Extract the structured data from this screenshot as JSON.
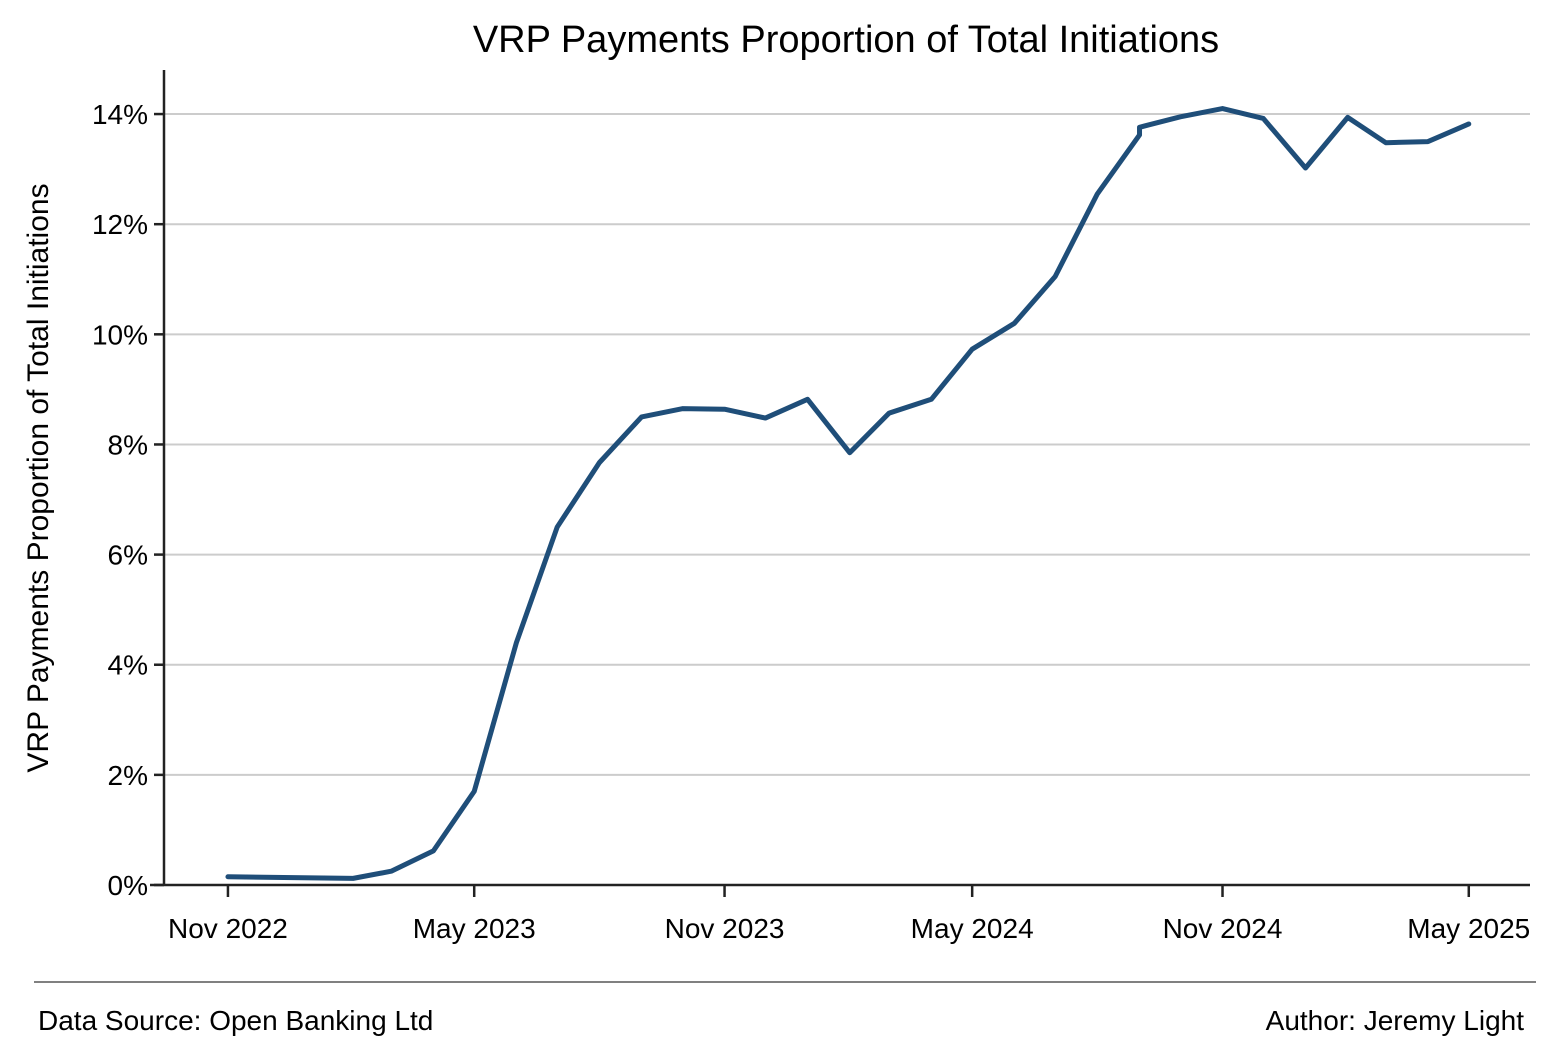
{
  "chart_data": {
    "type": "line",
    "title": "VRP Payments Proportion of Total Initiations",
    "xlabel": "",
    "ylabel": "VRP Payments Proportion of Total Initiations",
    "ylim": [
      0,
      14.8
    ],
    "y_ticks": [
      {
        "value": 0,
        "label": "0%"
      },
      {
        "value": 2,
        "label": "2%"
      },
      {
        "value": 4,
        "label": "4%"
      },
      {
        "value": 6,
        "label": "6%"
      },
      {
        "value": 8,
        "label": "8%"
      },
      {
        "value": 10,
        "label": "10%"
      },
      {
        "value": 12,
        "label": "12%"
      },
      {
        "value": 14,
        "label": "14%"
      }
    ],
    "x_ticks": [
      {
        "value": "2022-11-01",
        "label": "Nov 2022"
      },
      {
        "value": "2023-05-01",
        "label": "May 2023"
      },
      {
        "value": "2023-11-01",
        "label": "Nov 2023"
      },
      {
        "value": "2024-05-01",
        "label": "May 2024"
      },
      {
        "value": "2024-11-01",
        "label": "Nov 2024"
      },
      {
        "value": "2025-05-01",
        "label": "May 2025"
      }
    ],
    "xlim": [
      "2022-09-15",
      "2025-06-15"
    ],
    "grid": "horizontal",
    "line_color": "#1f4e79",
    "grid_color": "#cccccc",
    "series": [
      {
        "points": [
          {
            "x": "2022-11-01",
            "y": 0.15
          },
          {
            "x": "2023-02-01",
            "y": 0.12
          },
          {
            "x": "2023-03-01",
            "y": 0.25
          },
          {
            "x": "2023-04-01",
            "y": 0.62
          },
          {
            "x": "2023-05-01",
            "y": 1.7
          },
          {
            "x": "2023-06-01",
            "y": 4.4
          },
          {
            "x": "2023-07-01",
            "y": 6.5
          },
          {
            "x": "2023-08-01",
            "y": 7.67
          },
          {
            "x": "2023-09-01",
            "y": 8.5
          },
          {
            "x": "2023-10-01",
            "y": 8.65
          },
          {
            "x": "2023-11-01",
            "y": 8.64
          },
          {
            "x": "2023-12-01",
            "y": 8.48
          },
          {
            "x": "2024-01-01",
            "y": 8.82
          },
          {
            "x": "2024-02-01",
            "y": 7.85
          },
          {
            "x": "2024-03-01",
            "y": 8.57
          },
          {
            "x": "2024-04-01",
            "y": 8.82
          },
          {
            "x": "2024-05-01",
            "y": 9.73
          },
          {
            "x": "2024-06-01",
            "y": 10.2
          },
          {
            "x": "2024-07-01",
            "y": 11.05
          },
          {
            "x": "2024-08-01",
            "y": 12.55
          },
          {
            "x": "2024-09-01",
            "y": 13.62
          },
          {
            "x": "2024-09-01",
            "y": 13.76
          },
          {
            "x": "2024-10-01",
            "y": 13.95
          },
          {
            "x": "2024-11-01",
            "y": 14.1
          },
          {
            "x": "2024-12-01",
            "y": 13.92
          },
          {
            "x": "2025-01-01",
            "y": 13.02
          },
          {
            "x": "2025-02-01",
            "y": 13.94
          },
          {
            "x": "2025-03-01",
            "y": 13.48
          },
          {
            "x": "2025-04-01",
            "y": 13.5
          },
          {
            "x": "2025-05-01",
            "y": 13.82
          }
        ]
      }
    ]
  },
  "footer": {
    "source": "Data Source: Open Banking Ltd",
    "author": "Author: Jeremy Light"
  }
}
